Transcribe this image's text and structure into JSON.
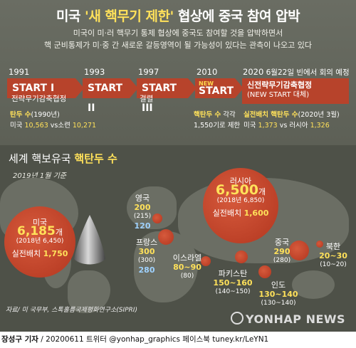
{
  "title": {
    "part1": "미국 ",
    "highlight": "'새 핵무기 제한'",
    "part2": " 협상에 중국 참여 압박"
  },
  "subtitle": [
    "미국이 미·러 핵무기 통제 협상에 중국도 참여할 것을 압박하면서",
    "핵 군비통제가 미·중 간 새로운 갈등영역이 될 가능성이 있다는 관측이 나오고 있다"
  ],
  "timeline": [
    {
      "year": "1991",
      "label": "START I",
      "desc": "전략무기감축협정",
      "note_hl": "탄두 수",
      "note_hl_extra": "(1990년)",
      "note2_pre": "미국 ",
      "note2_a": "10,563",
      "note2_mid": " vs소련 ",
      "note2_b": "10,271"
    },
    {
      "year": "1993",
      "label": "START II"
    },
    {
      "year": "1997",
      "label": "START III",
      "desc": "결렬"
    },
    {
      "year": "2010",
      "new_line": "NEW",
      "label": "START",
      "note_hl": "핵탄두 수",
      "note_rest": " 각각",
      "note2": "1,550기로 제한"
    },
    {
      "year": "2020",
      "date": " 6월22일 빈에서 회의 예정",
      "label": "신전략무기감축협정",
      "desc": "(NEW START 대체)",
      "note_hl": "실전배치 핵탄두 수",
      "note_hl_extra": "(2020년 3월)",
      "note2_pre": "미국 ",
      "note2_a": "1,373",
      "note2_mid": " vs 러시아 ",
      "note2_b": "1,326"
    }
  ],
  "section": {
    "prefix": "세계 핵보유국 ",
    "highlight": "핵탄두 수"
  },
  "basis": "2019년 1월 기준",
  "countries": {
    "usa": {
      "name": "미국",
      "num": "6,185",
      "unit": "개",
      "prev": "(2018년 6,450)",
      "dep_label": "실전배치 ",
      "dep": "1,750"
    },
    "russia": {
      "name": "러시아",
      "num": "6,500",
      "unit": "개",
      "prev": "(2018년 6,850)",
      "dep_label": "실전배치 ",
      "dep": "1,600"
    },
    "uk": {
      "name": "영국",
      "num": "200",
      "prev": "(215)",
      "dep": "120"
    },
    "france": {
      "name": "프랑스",
      "num": "300",
      "prev": "(300)",
      "dep": "280"
    },
    "israel": {
      "name": "이스라엘",
      "num": "80~90",
      "prev": "(80)"
    },
    "pakistan": {
      "name": "파키스탄",
      "num": "150~160",
      "prev": "(140~150)"
    },
    "india": {
      "name": "인도",
      "num": "130~140",
      "prev": "(130~140)"
    },
    "china": {
      "name": "중국",
      "num": "290",
      "prev": "(280)"
    },
    "nkorea": {
      "name": "북한",
      "num": "20~30",
      "prev": "(10~20)"
    }
  },
  "source": "자료/ 미 국무부, 스톡홀름국제평화연구소(SIPRI)",
  "logo": "YONHAP NEWS",
  "credit": {
    "author": "장성구 기자",
    "rest": " / 20200611 트위터 @yonhap_graphics  페이스북 tuney.kr/LeYN1"
  },
  "colors": {
    "accent": "#ffe15a",
    "arrow": "#b7432b",
    "deployed": "#9fd2ff"
  }
}
